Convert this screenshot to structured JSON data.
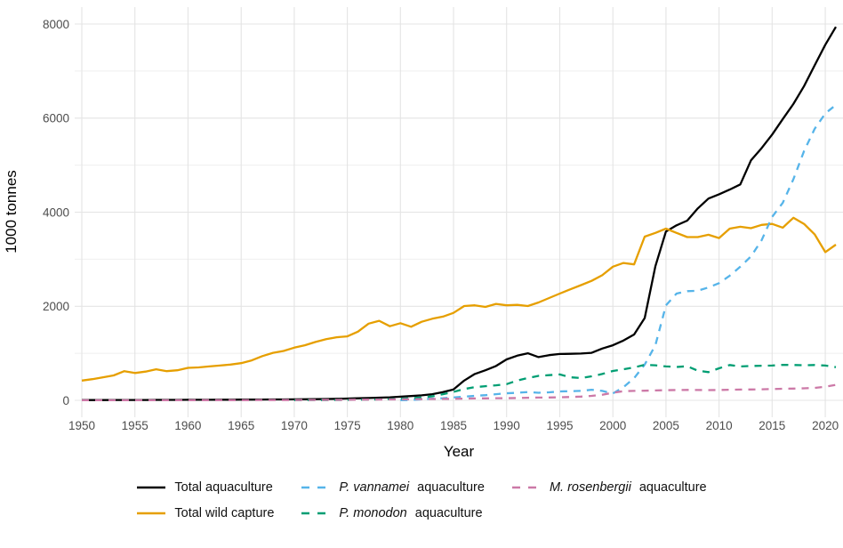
{
  "figure": {
    "y_axis": {
      "title": "1000 tonnes",
      "ticks": [
        0,
        2000,
        4000,
        6000,
        8000
      ],
      "minor_ticks": [
        1000,
        3000,
        5000,
        7000
      ],
      "max": 8000
    },
    "x_axis": {
      "title": "Year",
      "ticks": [
        1950,
        1955,
        1960,
        1965,
        1970,
        1975,
        1980,
        1985,
        1990,
        1995,
        2000,
        2005,
        2010,
        2015,
        2020
      ],
      "range": [
        1950,
        2021
      ]
    },
    "legend": [
      {
        "id": "total_aquaculture",
        "italic": "",
        "rest": "Total aquaculture",
        "color": "#000000",
        "dash": "solid"
      },
      {
        "id": "p_vannamei",
        "italic": "P. vannamei",
        "rest": " aquaculture",
        "color": "#56B4E9",
        "dash": "dashed"
      },
      {
        "id": "m_rosenbergii",
        "italic": "M. rosenbergii",
        "rest": " aquaculture",
        "color": "#CC79A7",
        "dash": "dashed"
      },
      {
        "id": "total_wild_capture",
        "italic": "",
        "rest": "Total wild capture",
        "color": "#E69F00",
        "dash": "solid"
      },
      {
        "id": "p_monodon",
        "italic": "P. monodon",
        "rest": " aquaculture",
        "color": "#009E73",
        "dash": "dashed"
      }
    ]
  },
  "chart_data": {
    "type": "line",
    "title": "",
    "xlabel": "Year",
    "ylabel": "1000 tonnes",
    "ylim": [
      0,
      8000
    ],
    "xlim": [
      1950,
      2021
    ],
    "grid": true,
    "legend_position": "bottom",
    "years": [
      1950,
      1951,
      1952,
      1953,
      1954,
      1955,
      1956,
      1957,
      1958,
      1959,
      1960,
      1961,
      1962,
      1963,
      1964,
      1965,
      1966,
      1967,
      1968,
      1969,
      1970,
      1971,
      1972,
      1973,
      1974,
      1975,
      1976,
      1977,
      1978,
      1979,
      1980,
      1981,
      1982,
      1983,
      1984,
      1985,
      1986,
      1987,
      1988,
      1989,
      1990,
      1991,
      1992,
      1993,
      1994,
      1995,
      1996,
      1997,
      1998,
      1999,
      2000,
      2001,
      2002,
      2003,
      2004,
      2005,
      2006,
      2007,
      2008,
      2009,
      2010,
      2011,
      2012,
      2013,
      2014,
      2015,
      2016,
      2017,
      2018,
      2019,
      2020,
      2021
    ],
    "series": [
      {
        "id": "total_aquaculture",
        "name": "Total aquaculture",
        "color": "#000000",
        "dash": "solid",
        "values": [
          5,
          6,
          6,
          7,
          7,
          8,
          8,
          9,
          9,
          10,
          11,
          11,
          12,
          13,
          14,
          15,
          16,
          17,
          18,
          19,
          20,
          22,
          25,
          28,
          32,
          38,
          44,
          50,
          57,
          65,
          78,
          90,
          105,
          130,
          175,
          230,
          420,
          560,
          640,
          730,
          870,
          950,
          1000,
          920,
          960,
          985,
          990,
          995,
          1010,
          1100,
          1170,
          1270,
          1400,
          1750,
          2850,
          3590,
          3720,
          3820,
          4080,
          4290,
          4380,
          4480,
          4590,
          5100,
          5360,
          5650,
          5980,
          6300,
          6680,
          7120,
          7560,
          7940
        ]
      },
      {
        "id": "total_wild_capture",
        "name": "Total wild capture",
        "color": "#E69F00",
        "dash": "solid",
        "values": [
          420,
          450,
          490,
          530,
          620,
          580,
          610,
          660,
          620,
          640,
          690,
          700,
          720,
          740,
          760,
          790,
          850,
          940,
          1010,
          1050,
          1120,
          1170,
          1240,
          1300,
          1340,
          1360,
          1460,
          1630,
          1690,
          1575,
          1640,
          1565,
          1670,
          1735,
          1780,
          1860,
          2005,
          2020,
          1985,
          2050,
          2020,
          2030,
          2005,
          2080,
          2175,
          2270,
          2360,
          2450,
          2540,
          2660,
          2840,
          2920,
          2890,
          3480,
          3560,
          3650,
          3560,
          3470,
          3470,
          3520,
          3450,
          3650,
          3690,
          3660,
          3730,
          3750,
          3670,
          3880,
          3750,
          3530,
          3150,
          3310
        ]
      },
      {
        "id": "p_vannamei",
        "name": "P. vannamei aquaculture",
        "color": "#56B4E9",
        "dash": "dashed",
        "values": [
          null,
          null,
          null,
          null,
          null,
          null,
          null,
          null,
          null,
          null,
          null,
          null,
          null,
          null,
          null,
          null,
          null,
          null,
          null,
          null,
          null,
          null,
          null,
          null,
          null,
          null,
          null,
          null,
          null,
          null,
          2,
          8,
          20,
          35,
          45,
          60,
          80,
          95,
          110,
          130,
          150,
          160,
          175,
          160,
          170,
          190,
          195,
          200,
          225,
          200,
          145,
          280,
          470,
          760,
          1170,
          2020,
          2270,
          2320,
          2330,
          2400,
          2490,
          2650,
          2840,
          3060,
          3400,
          3900,
          4200,
          4700,
          5300,
          5770,
          6100,
          6280
        ]
      },
      {
        "id": "p_monodon",
        "name": "P. monodon aquaculture",
        "color": "#009E73",
        "dash": "dashed",
        "values": [
          null,
          null,
          null,
          null,
          null,
          null,
          null,
          null,
          null,
          null,
          null,
          null,
          null,
          null,
          null,
          null,
          null,
          null,
          null,
          null,
          3,
          4,
          5,
          6,
          8,
          10,
          13,
          16,
          20,
          26,
          33,
          45,
          60,
          85,
          130,
          180,
          240,
          280,
          300,
          320,
          345,
          420,
          475,
          520,
          535,
          550,
          490,
          475,
          510,
          560,
          625,
          660,
          700,
          755,
          745,
          720,
          710,
          724,
          630,
          600,
          680,
          750,
          720,
          730,
          735,
          740,
          755,
          750,
          745,
          750,
          740,
          705
        ]
      },
      {
        "id": "m_rosenbergii",
        "name": "M. rosenbergii aquaculture",
        "color": "#CC79A7",
        "dash": "dashed",
        "values": [
          1,
          1,
          1,
          1,
          1,
          2,
          2,
          2,
          2,
          2,
          2,
          3,
          3,
          3,
          4,
          4,
          4,
          5,
          5,
          5,
          6,
          7,
          8,
          9,
          10,
          12,
          13,
          15,
          17,
          19,
          21,
          23,
          26,
          28,
          30,
          33,
          36,
          39,
          42,
          46,
          45,
          50,
          55,
          58,
          60,
          65,
          70,
          80,
          95,
          120,
          160,
          195,
          200,
          205,
          210,
          215,
          220,
          222,
          220,
          218,
          220,
          225,
          228,
          230,
          235,
          240,
          245,
          250,
          255,
          265,
          290,
          330
        ]
      }
    ]
  }
}
